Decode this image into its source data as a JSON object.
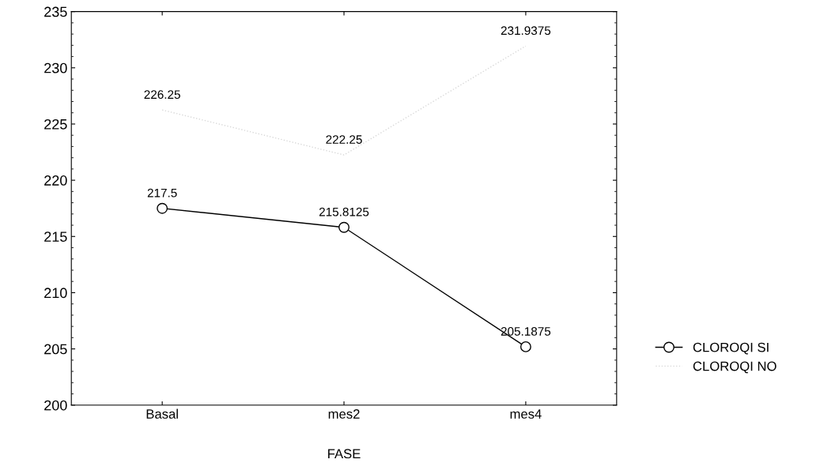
{
  "chart_data": {
    "type": "line",
    "xlabel": "FASE",
    "categories": [
      "Basal",
      "mes2",
      "mes4"
    ],
    "series": [
      {
        "name": "CLOROQI SI",
        "color": "#000000",
        "values": [
          217.5,
          215.8125,
          205.1875
        ],
        "marker": "circle"
      },
      {
        "name": "CLOROQI NO",
        "color": "#d8d8d8",
        "values": [
          226.25,
          222.25,
          231.9375
        ],
        "marker": "none",
        "line_style": "dotted"
      }
    ],
    "ylim": [
      200,
      235
    ],
    "yticks": [
      200,
      205,
      210,
      215,
      220,
      225,
      230,
      235
    ],
    "data_labels": true,
    "grid": false,
    "legend": "right"
  }
}
